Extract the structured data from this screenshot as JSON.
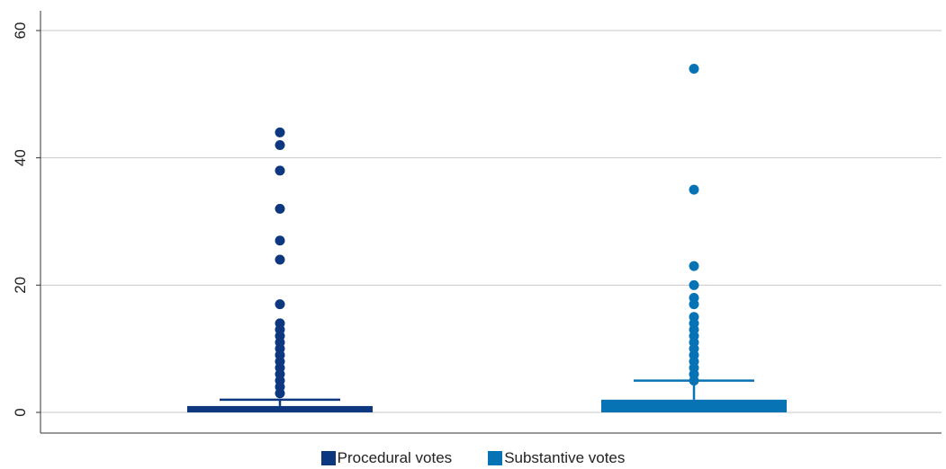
{
  "colors": {
    "procedural": "#0d3880",
    "substantive": "#0873b4",
    "grid": "#c8c8c8",
    "axis": "#333333"
  },
  "chart_data": {
    "type": "boxplot",
    "title": "",
    "xlabel": "",
    "ylabel": "",
    "ylim": [
      0,
      60
    ],
    "yticks": [
      {
        "value": 0,
        "label": "0"
      },
      {
        "value": 20,
        "label": "20"
      },
      {
        "value": 40,
        "label": "40"
      },
      {
        "value": 60,
        "label": "60"
      }
    ],
    "grid": true,
    "legend": "bottom",
    "series": [
      {
        "name": "Procedural votes",
        "color_key": "procedural",
        "q1": 0,
        "median": 0,
        "q3": 1,
        "whisker_low": 0,
        "whisker_high": 2,
        "outliers": [
          3,
          4,
          5,
          6,
          7,
          8,
          9,
          10,
          11,
          12,
          13,
          14,
          17,
          24,
          27,
          32,
          38,
          42,
          44
        ]
      },
      {
        "name": "Substantive votes",
        "color_key": "substantive",
        "q1": 0,
        "median": 0,
        "q3": 2,
        "whisker_low": 0,
        "whisker_high": 5,
        "outliers": [
          5,
          6,
          7,
          8,
          9,
          10,
          11,
          12,
          13,
          14,
          15,
          17,
          18,
          20,
          23,
          35,
          54
        ]
      }
    ]
  }
}
